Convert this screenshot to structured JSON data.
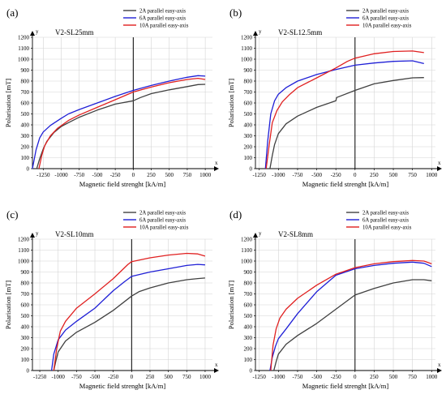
{
  "chart_data": [
    {
      "type": "line",
      "panel_label": "(a)",
      "title": "V2-SL25mm",
      "xlabel": "Magnetic field strenght [kA/m]",
      "ylabel": "Polarisation [mT]",
      "x_axis_letter": "x",
      "y_axis_letter": "y",
      "xlim": [
        -1400,
        1100
      ],
      "ylim": [
        0,
        1200
      ],
      "xticks": [
        -1250,
        -1000,
        -750,
        -500,
        -250,
        0,
        250,
        500,
        750,
        1000
      ],
      "yticks": [
        0,
        100,
        200,
        300,
        400,
        500,
        600,
        700,
        800,
        900,
        1000,
        1100,
        1200
      ],
      "grid": true,
      "legend_position": "top-right",
      "series": [
        {
          "name": "2A parallel easy-axis",
          "color": "#404040",
          "x": [
            -1340,
            -1300,
            -1250,
            -1200,
            -1100,
            -1000,
            -900,
            -750,
            -500,
            -250,
            0,
            100,
            250,
            500,
            750,
            900,
            1000
          ],
          "y": [
            0,
            90,
            180,
            250,
            330,
            385,
            420,
            470,
            535,
            590,
            620,
            650,
            685,
            720,
            750,
            768,
            770
          ]
        },
        {
          "name": "6A parallel easy-axis",
          "color": "#1f1fd6",
          "x": [
            -1400,
            -1350,
            -1300,
            -1250,
            -1150,
            -1000,
            -900,
            -750,
            -500,
            -250,
            0,
            250,
            500,
            750,
            900,
            1000
          ],
          "y": [
            0,
            170,
            280,
            335,
            395,
            460,
            500,
            540,
            600,
            660,
            715,
            760,
            800,
            835,
            850,
            845
          ]
        },
        {
          "name": "10A parallel easy-axis",
          "color": "#e02020",
          "x": [
            -1310,
            -1270,
            -1230,
            -1150,
            -1050,
            -900,
            -750,
            -500,
            -250,
            0,
            250,
            500,
            750,
            900,
            1000
          ],
          "y": [
            0,
            120,
            210,
            300,
            370,
            440,
            490,
            560,
            630,
            700,
            745,
            785,
            815,
            825,
            815
          ]
        }
      ]
    },
    {
      "type": "line",
      "panel_label": "(b)",
      "title": "V2-SL12.5mm",
      "xlabel": "Magnetic field strenght [kA/m]",
      "ylabel": "Polarisation [mT]",
      "x_axis_letter": "x",
      "y_axis_letter": "y",
      "xlim": [
        -1300,
        1050
      ],
      "ylim": [
        0,
        1200
      ],
      "xticks": [
        -1250,
        -1000,
        -750,
        -500,
        -250,
        0,
        250,
        500,
        750,
        1000
      ],
      "yticks": [
        0,
        100,
        200,
        300,
        400,
        500,
        600,
        700,
        800,
        900,
        1000,
        1100,
        1200
      ],
      "grid": true,
      "legend_position": "top-right",
      "series": [
        {
          "name": "2A parallel easy-axis",
          "color": "#404040",
          "x": [
            -1110,
            -1080,
            -1050,
            -1000,
            -900,
            -750,
            -500,
            -250,
            -240,
            0,
            250,
            500,
            750,
            900
          ],
          "y": [
            0,
            120,
            220,
            320,
            410,
            480,
            560,
            620,
            650,
            715,
            775,
            805,
            830,
            832
          ]
        },
        {
          "name": "6A parallel easy-axis",
          "color": "#1f1fd6",
          "x": [
            -1170,
            -1140,
            -1100,
            -1050,
            -1000,
            -900,
            -750,
            -500,
            -250,
            0,
            250,
            500,
            750,
            900
          ],
          "y": [
            0,
            250,
            500,
            620,
            680,
            740,
            800,
            860,
            905,
            945,
            965,
            980,
            985,
            960
          ]
        },
        {
          "name": "10A parallel easy-axis",
          "color": "#e02020",
          "x": [
            -1160,
            -1120,
            -1080,
            -1020,
            -950,
            -850,
            -750,
            -500,
            -250,
            -100,
            0,
            250,
            500,
            750,
            900
          ],
          "y": [
            0,
            220,
            420,
            530,
            610,
            680,
            740,
            830,
            920,
            980,
            1010,
            1050,
            1070,
            1075,
            1060
          ]
        }
      ]
    },
    {
      "type": "line",
      "panel_label": "(c)",
      "title": "V2-SL10mm",
      "xlabel": "Magnetic field strenght [kA/m]",
      "ylabel": "Polarisation [mT]",
      "x_axis_letter": "x",
      "y_axis_letter": "y",
      "xlim": [
        -1350,
        1100
      ],
      "ylim": [
        0,
        1200
      ],
      "xticks": [
        -1250,
        -1000,
        -750,
        -500,
        -250,
        0,
        250,
        500,
        750,
        1000
      ],
      "yticks": [
        0,
        100,
        200,
        300,
        400,
        500,
        600,
        700,
        800,
        900,
        1000,
        1100,
        1200
      ],
      "grid": true,
      "legend_position": "top-right",
      "series": [
        {
          "name": "2A parallel easy-axis",
          "color": "#404040",
          "x": [
            -1060,
            -1030,
            -1000,
            -900,
            -750,
            -500,
            -250,
            0,
            100,
            250,
            500,
            750,
            900,
            1000
          ],
          "y": [
            0,
            90,
            170,
            270,
            350,
            440,
            550,
            680,
            720,
            755,
            800,
            830,
            840,
            845
          ]
        },
        {
          "name": "6A parallel easy-axis",
          "color": "#1f1fd6",
          "x": [
            -1090,
            -1060,
            -1000,
            -900,
            -750,
            -500,
            -250,
            -100,
            0,
            250,
            500,
            750,
            900,
            1000
          ],
          "y": [
            0,
            150,
            280,
            370,
            450,
            570,
            730,
            810,
            860,
            900,
            930,
            960,
            970,
            965
          ]
        },
        {
          "name": "10A parallel easy-axis",
          "color": "#e02020",
          "x": [
            -1060,
            -1020,
            -970,
            -900,
            -750,
            -500,
            -250,
            -50,
            0,
            250,
            500,
            750,
            900,
            1000
          ],
          "y": [
            0,
            200,
            360,
            450,
            570,
            700,
            840,
            970,
            995,
            1030,
            1055,
            1070,
            1065,
            1045
          ]
        }
      ]
    },
    {
      "type": "line",
      "panel_label": "(d)",
      "title": "V2-SL8mm",
      "xlabel": "Magnetic field strenght [kA/m]",
      "ylabel": "Polarisation [mT]",
      "x_axis_letter": "x",
      "y_axis_letter": "y",
      "xlim": [
        -1300,
        1050
      ],
      "ylim": [
        0,
        1200
      ],
      "xticks": [
        -1250,
        -1000,
        -750,
        -500,
        -250,
        0,
        250,
        500,
        750,
        1000
      ],
      "yticks": [
        0,
        100,
        200,
        300,
        400,
        500,
        600,
        700,
        800,
        900,
        1000,
        1100,
        1200
      ],
      "grid": true,
      "legend_position": "top-right",
      "series": [
        {
          "name": "2A parallel easy-axis",
          "color": "#404040",
          "x": [
            -1060,
            -1030,
            -1000,
            -900,
            -750,
            -500,
            -250,
            0,
            250,
            500,
            750,
            900,
            1000
          ],
          "y": [
            0,
            80,
            150,
            240,
            320,
            430,
            560,
            690,
            750,
            800,
            830,
            830,
            820
          ]
        },
        {
          "name": "6A parallel easy-axis",
          "color": "#1f1fd6",
          "x": [
            -1110,
            -1080,
            -1040,
            -1000,
            -900,
            -750,
            -500,
            -250,
            0,
            250,
            500,
            750,
            900,
            1000
          ],
          "y": [
            0,
            120,
            220,
            290,
            380,
            520,
            720,
            870,
            930,
            960,
            980,
            990,
            980,
            950
          ]
        },
        {
          "name": "10A parallel easy-axis",
          "color": "#e02020",
          "x": [
            -1100,
            -1070,
            -1030,
            -980,
            -900,
            -750,
            -500,
            -250,
            0,
            250,
            500,
            750,
            900,
            1000
          ],
          "y": [
            0,
            230,
            380,
            480,
            560,
            660,
            780,
            880,
            940,
            975,
            995,
            1005,
            1000,
            975
          ]
        }
      ]
    }
  ]
}
